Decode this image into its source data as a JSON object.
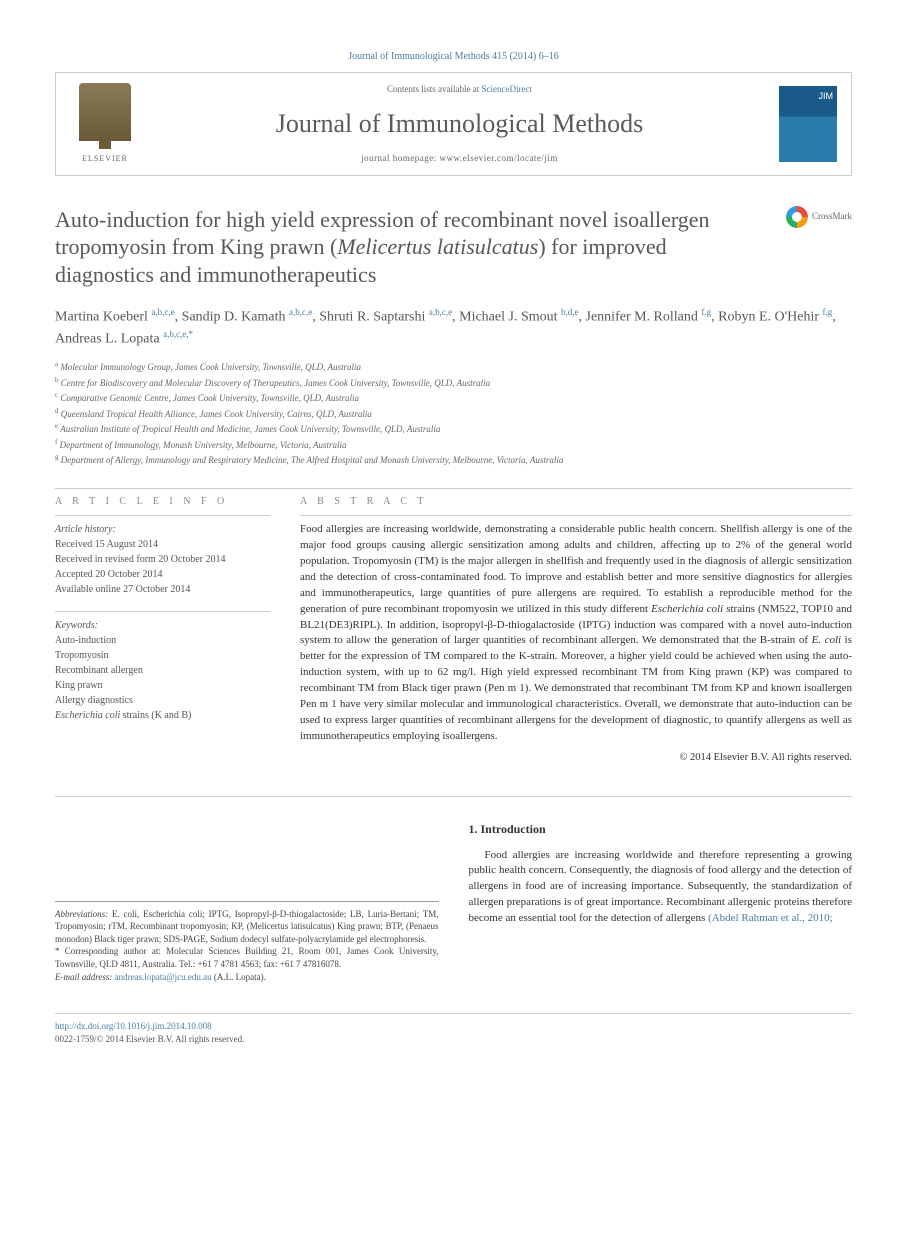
{
  "top_citation": "Journal of Immunological Methods 415 (2014) 6–16",
  "header": {
    "elsevier_label": "ELSEVIER",
    "contents_prefix": "Contents lists available at ",
    "contents_link": "ScienceDirect",
    "journal_name": "Journal of Immunological Methods",
    "homepage_prefix": "journal homepage: ",
    "homepage_url": "www.elsevier.com/locate/jim"
  },
  "crossmark_label": "CrossMark",
  "title_plain_prefix": "Auto-induction for high yield expression of recombinant novel isoallergen tropomyosin from King prawn (",
  "title_italic": "Melicertus latisulcatus",
  "title_plain_suffix": ") for improved diagnostics and immunotherapeutics",
  "authors_html": "Martina Koeberl <sup>a,b,c,e</sup>, Sandip D. Kamath <sup>a,b,c,e</sup>, Shruti R. Saptarshi <sup>a,b,c,e</sup>, Michael J. Smout <sup>b,d,e</sup>, Jennifer M. Rolland <sup>f,g</sup>, Robyn E. O'Hehir <sup>f,g</sup>, Andreas L. Lopata <sup>a,b,c,e,*</sup>",
  "affiliations": [
    {
      "key": "a",
      "text": "Molecular Immunology Group, James Cook University, Townsville, QLD, Australia"
    },
    {
      "key": "b",
      "text": "Centre for Biodiscovery and Molecular Discovery of Therapeutics, James Cook University, Townsville, QLD, Australia"
    },
    {
      "key": "c",
      "text": "Comparative Genomic Centre, James Cook University, Townsville, QLD, Australia"
    },
    {
      "key": "d",
      "text": "Queensland Tropical Health Alliance, James Cook University, Cairns, QLD, Australia"
    },
    {
      "key": "e",
      "text": "Australian Institute of Tropical Health and Medicine, James Cook University, Townsville, QLD, Australia"
    },
    {
      "key": "f",
      "text": "Department of Immunology, Monash University, Melbourne, Victoria, Australia"
    },
    {
      "key": "g",
      "text": "Department of Allergy, Immunology and Respiratory Medicine, The Alfred Hospital and Monash University, Melbourne, Victoria, Australia"
    }
  ],
  "info_head": "A R T I C L E   I N F O",
  "abstract_head": "A B S T R A C T",
  "history_label": "Article history:",
  "history": [
    "Received 15 August 2014",
    "Received in revised form 20 October 2014",
    "Accepted 20 October 2014",
    "Available online 27 October 2014"
  ],
  "keywords_label": "Keywords:",
  "keywords": [
    "Auto-induction",
    "Tropomyosin",
    "Recombinant allergen",
    "King prawn",
    "Allergy diagnostics"
  ],
  "keywords_italic_line_prefix": "Escherichia coli",
  "keywords_italic_line_suffix": " strains (K and B)",
  "abstract_text": "Food allergies are increasing worldwide, demonstrating a considerable public health concern. Shellfish allergy is one of the major food groups causing allergic sensitization among adults and children, affecting up to 2% of the general world population. Tropomyosin (TM) is the major allergen in shellfish and frequently used in the diagnosis of allergic sensitization and the detection of cross-contaminated food. To improve and establish better and more sensitive diagnostics for allergies and immunotherapeutics, large quantities of pure allergens are required. To establish a reproducible method for the generation of pure recombinant tropomyosin we utilized in this study different Escherichia coli strains (NM522, TOP10 and BL21(DE3)RIPL). In addition, isopropyl-β-D-thiogalactoside (IPTG) induction was compared with a novel auto-induction system to allow the generation of larger quantities of recombinant allergen. We demonstrated that the B-strain of E. coli is better for the expression of TM compared to the K-strain. Moreover, a higher yield could be achieved when using the auto-induction system, with up to 62 mg/l. High yield expressed recombinant TM from King prawn (KP) was compared to recombinant TM from Black tiger prawn (Pen m 1). We demonstrated that recombinant TM from KP and known isoallergen Pen m 1 have very similar molecular and immunological characteristics. Overall, we demonstrate that auto-induction can be used to express larger quantities of recombinant allergens for the development of diagnostic, to quantify allergens as well as immunotherapeutics employing isoallergens.",
  "copyright": "© 2014 Elsevier B.V. All rights reserved.",
  "abbrev_label": "Abbreviations:",
  "abbrev_text": " E. coli, Escherichia coli; IPTG, Isopropyl-β-D-thiogalactoside; LB, Luria-Bertani; TM, Tropomyosin; rTM, Recombinant tropomyosin; KP, (Melicertus latisulcatus) King prawn; BTP, (Penaeus monodon) Black tiger prawn; SDS-PAGE, Sodium dodecyl sulfate-polyacrylamide gel electrophoresis.",
  "corr_label": "*",
  "corr_text": " Corresponding author at: Molecular Sciences Building 21, Room 001, James Cook University, Townsville, QLD 4811, Australia. Tel.: +61 7 4781 4563; fax: +61 7 47816078.",
  "email_label": "E-mail address: ",
  "email": "andreas.lopata@jcu.edu.au",
  "email_suffix": " (A.L. Lopata).",
  "intro_head": "1. Introduction",
  "intro_text": "Food allergies are increasing worldwide and therefore representing a growing public health concern. Consequently, the diagnosis of food allergy and the detection of allergens in food are of increasing importance. Subsequently, the standardization of allergen preparations is of great importance. Recombinant allergenic proteins therefore become an essential tool for the detection of allergens ",
  "intro_cite": "(Abdel Rahman et al., 2010;",
  "doi": "http://dx.doi.org/10.1016/j.jim.2014.10.008",
  "issn_line": "0022-1759/© 2014 Elsevier B.V. All rights reserved.",
  "colors": {
    "link": "#4a7ba6",
    "text": "#333333",
    "muted": "#666666",
    "border": "#cccccc",
    "title": "#58585a"
  },
  "typography": {
    "body_fontsize": 12,
    "title_fontsize": 22,
    "journal_fontsize": 26,
    "authors_fontsize": 14,
    "abstract_fontsize": 11,
    "small_fontsize": 9
  }
}
